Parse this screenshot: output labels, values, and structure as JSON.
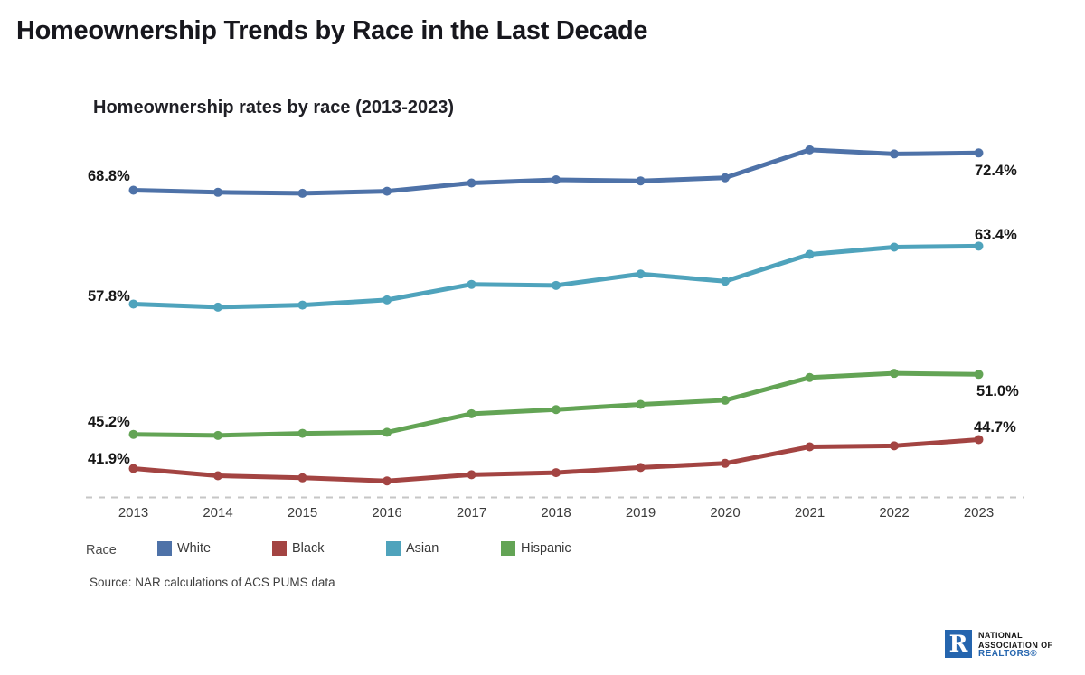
{
  "page": {
    "title": "Homeownership Trends by Race in the Last Decade",
    "source": "Source: NAR calculations of ACS PUMS data"
  },
  "chart_data": {
    "type": "line",
    "title": "Homeownership rates by race (2013-2023)",
    "categories": [
      "2013",
      "2014",
      "2015",
      "2016",
      "2017",
      "2018",
      "2019",
      "2020",
      "2021",
      "2022",
      "2023"
    ],
    "series": [
      {
        "name": "White",
        "color": "#4e72a8",
        "values": [
          68.8,
          68.6,
          68.5,
          68.7,
          69.5,
          69.8,
          69.7,
          70.0,
          72.7,
          72.3,
          72.4
        ]
      },
      {
        "name": "Black",
        "color": "#a34442",
        "values": [
          41.9,
          41.2,
          41.0,
          40.7,
          41.3,
          41.5,
          42.0,
          42.4,
          44.0,
          44.1,
          44.7
        ]
      },
      {
        "name": "Asian",
        "color": "#4fa3bc",
        "values": [
          57.8,
          57.5,
          57.7,
          58.2,
          59.7,
          59.6,
          60.7,
          60.0,
          62.6,
          63.3,
          63.4
        ]
      },
      {
        "name": "Hispanic",
        "color": "#63a455",
        "values": [
          45.2,
          45.1,
          45.3,
          45.4,
          47.2,
          47.6,
          48.1,
          48.5,
          50.7,
          51.1,
          51.0
        ]
      }
    ],
    "legend_title": "Race",
    "legend_position": "bottom",
    "grid": false,
    "ylim": [
      38,
      76
    ],
    "axis_line_color": "#c6c6c6",
    "annotations": {
      "white_start": "68.8%",
      "white_end": "72.4%",
      "asian_start": "57.8%",
      "asian_end": "63.4%",
      "hispanic_start": "45.2%",
      "hispanic_end": "51.0%",
      "black_start": "41.9%",
      "black_end": "44.7%"
    }
  },
  "logo": {
    "mark": "R",
    "line1": "NATIONAL",
    "line2": "ASSOCIATION OF",
    "line3": "REALTORS®"
  }
}
